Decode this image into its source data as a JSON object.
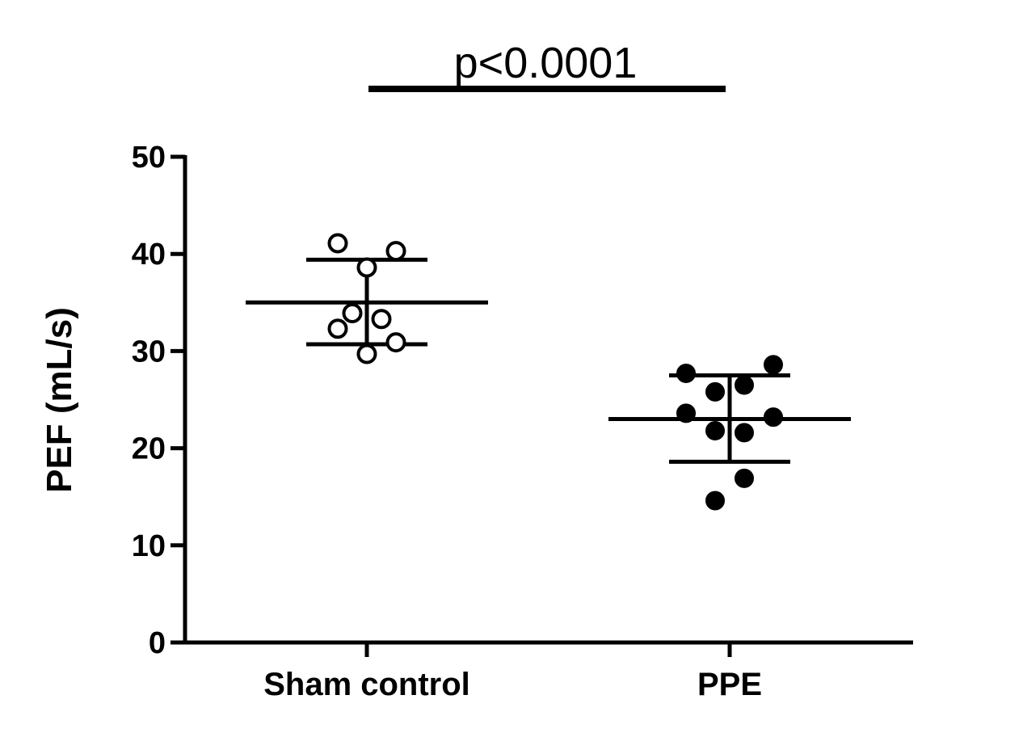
{
  "chart_data": {
    "type": "scatter",
    "ylabel": "PEF (mL/s)",
    "ylim": [
      0,
      50
    ],
    "yticks": [
      0,
      10,
      20,
      30,
      40,
      50
    ],
    "categories": [
      "Sham control",
      "PPE"
    ],
    "series": [
      {
        "category": "Sham control",
        "marker": "open-circle",
        "points": [
          41.1,
          40.3,
          38.6,
          33.9,
          33.3,
          32.3,
          30.9,
          29.7
        ],
        "mean": 35.0,
        "sd_upper": 39.4,
        "sd_lower": 30.7
      },
      {
        "category": "PPE",
        "marker": "filled-circle",
        "points": [
          28.6,
          27.7,
          26.5,
          25.8,
          23.6,
          23.2,
          21.8,
          21.6,
          16.9,
          14.6
        ],
        "mean": 23.0,
        "sd_upper": 27.5,
        "sd_lower": 18.6
      }
    ],
    "significance": {
      "label": "p<0.0001",
      "between": [
        "Sham control",
        "PPE"
      ]
    },
    "grid": false,
    "legend": "none",
    "colors": {
      "marker": "#000000",
      "axis": "#000000"
    }
  }
}
